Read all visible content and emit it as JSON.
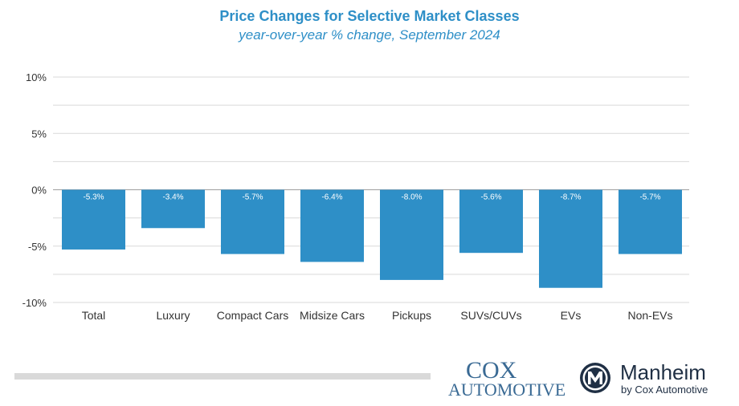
{
  "chart_data": {
    "type": "bar",
    "title": "Price Changes for Selective Market Classes",
    "subtitle": "year-over-year % change, September 2024",
    "categories": [
      "Total",
      "Luxury",
      "Compact Cars",
      "Midsize Cars",
      "Pickups",
      "SUVs/CUVs",
      "EVs",
      "Non-EVs"
    ],
    "values": [
      -5.3,
      -3.4,
      -5.7,
      -6.4,
      -8.0,
      -5.6,
      -8.7,
      -5.7
    ],
    "data_labels": [
      "-5.3%",
      "-3.4%",
      "-5.7%",
      "-6.4%",
      "-8.0%",
      "-5.6%",
      "-8.7%",
      "-5.7%"
    ],
    "ylim": [
      -10,
      10
    ],
    "yticks": [
      10,
      5,
      0,
      -5,
      -10
    ],
    "ytick_labels": [
      "10%",
      "5%",
      "0%",
      "-5%",
      "-10%"
    ],
    "grid": true,
    "bar_color": "#2e8fc7"
  },
  "branding": {
    "cox_line1": "Cox",
    "cox_line2": "Automotive",
    "manheim_name": "Manheim",
    "manheim_tagline": "by Cox Automotive",
    "manheim_icon": "manheim-m-icon"
  },
  "colors": {
    "title": "#2e8fc7",
    "cox": "#3a6a94",
    "manheim": "#1f2f44"
  }
}
